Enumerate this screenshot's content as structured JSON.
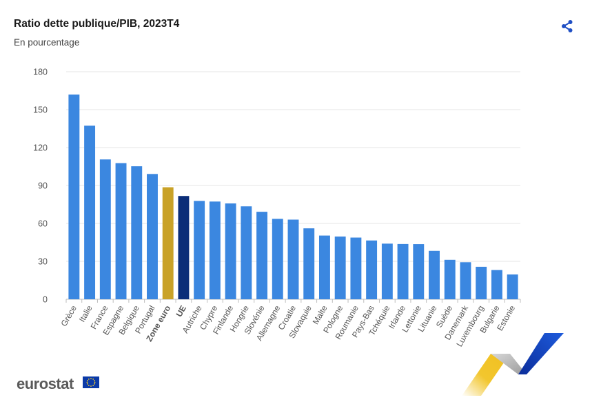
{
  "header": {
    "title": "Ratio dette publique/PIB, 2023T4",
    "subtitle": "En pourcentage",
    "share_icon": "share-icon"
  },
  "footer": {
    "brand": "eurostat",
    "flag_icon": "eu-flag-icon"
  },
  "colors": {
    "default": "#3b87e0",
    "highlight_euro": "#c9a227",
    "highlight_ue": "#0b2d78",
    "grid": "#e6e6e6",
    "axis_text": "#555555"
  },
  "chart_data": {
    "type": "bar",
    "title": "Ratio dette publique/PIB, 2023T4",
    "subtitle": "En pourcentage",
    "xlabel": "",
    "ylabel": "",
    "ylim": [
      0,
      180
    ],
    "yticks": [
      0,
      30,
      60,
      90,
      120,
      150,
      180
    ],
    "grid": true,
    "categories": [
      "Grèce",
      "Italie",
      "France",
      "Espagne",
      "Belgique",
      "Portugal",
      "Zone euro",
      "UE",
      "Autriche",
      "Chypre",
      "Finlande",
      "Hongrie",
      "Slovénie",
      "Allemagne",
      "Croatie",
      "Slovaquie",
      "Malte",
      "Pologne",
      "Roumanie",
      "Pays-Bas",
      "Tchéquie",
      "Irlande",
      "Lettonie",
      "Lituanie",
      "Suède",
      "Danemark",
      "Luxembourg",
      "Bulgarie",
      "Estonie"
    ],
    "values": [
      161.9,
      137.3,
      110.6,
      107.7,
      105.2,
      99.1,
      88.6,
      81.7,
      77.8,
      77.3,
      75.8,
      73.5,
      69.2,
      63.6,
      63.0,
      56.1,
      50.4,
      49.6,
      48.8,
      46.5,
      44.0,
      43.7,
      43.6,
      38.3,
      31.2,
      29.3,
      25.7,
      23.1,
      19.6
    ],
    "highlight": {
      "Zone euro": "euro",
      "UE": "ue"
    }
  }
}
